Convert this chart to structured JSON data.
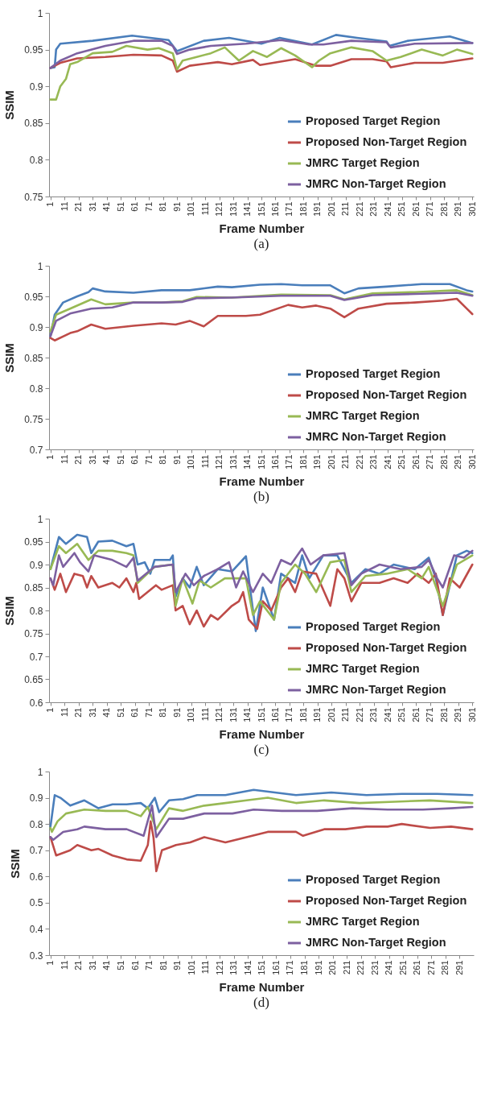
{
  "chart_data": [
    {
      "type": "line",
      "ylabel": "SSIM",
      "xlabel": "Frame Number",
      "annotations": [
        "(a)"
      ],
      "ylim": [
        0.75,
        1
      ],
      "yticks": [
        0.75,
        0.8,
        0.85,
        0.9,
        0.95,
        1
      ],
      "xlim": [
        0,
        302
      ],
      "xticks": [
        1,
        11,
        21,
        31,
        41,
        51,
        61,
        71,
        81,
        91,
        101,
        111,
        121,
        131,
        141,
        151,
        161,
        171,
        181,
        191,
        201,
        211,
        221,
        231,
        241,
        251,
        261,
        271,
        281,
        291,
        301
      ],
      "grid": false,
      "legend": "bottom right",
      "series": [
        {
          "name": "Proposed Target Region",
          "color": "#4a7ebb",
          "x": [
            1,
            4,
            5,
            8,
            31,
            59,
            85,
            91,
            110,
            128,
            151,
            164,
            187,
            204,
            219,
            240,
            242,
            255,
            285,
            301
          ],
          "values": [
            0.925,
            0.926,
            0.95,
            0.958,
            0.962,
            0.969,
            0.963,
            0.948,
            0.962,
            0.966,
            0.958,
            0.966,
            0.957,
            0.97,
            0.966,
            0.961,
            0.955,
            0.962,
            0.968,
            0.959
          ]
        },
        {
          "name": "Proposed Non-Target Region",
          "color": "#be4b48",
          "x": [
            1,
            8,
            20,
            40,
            60,
            80,
            88,
            91,
            100,
            120,
            130,
            145,
            150,
            175,
            190,
            200,
            215,
            230,
            240,
            243,
            260,
            280,
            301
          ],
          "values": [
            0.925,
            0.932,
            0.938,
            0.94,
            0.943,
            0.942,
            0.935,
            0.92,
            0.928,
            0.933,
            0.93,
            0.936,
            0.929,
            0.937,
            0.928,
            0.928,
            0.937,
            0.937,
            0.934,
            0.926,
            0.932,
            0.932,
            0.938
          ]
        },
        {
          "name": "JMRC Target Region",
          "color": "#98b954",
          "x": [
            1,
            5,
            8,
            12,
            15,
            20,
            31,
            45,
            55,
            70,
            78,
            88,
            91,
            95,
            105,
            115,
            125,
            135,
            145,
            155,
            165,
            175,
            187,
            192,
            200,
            215,
            230,
            240,
            250,
            265,
            280,
            290,
            301
          ],
          "values": [
            0.882,
            0.882,
            0.9,
            0.91,
            0.93,
            0.933,
            0.945,
            0.947,
            0.955,
            0.95,
            0.952,
            0.945,
            0.923,
            0.935,
            0.94,
            0.945,
            0.953,
            0.935,
            0.948,
            0.94,
            0.952,
            0.942,
            0.926,
            0.935,
            0.945,
            0.953,
            0.948,
            0.935,
            0.94,
            0.95,
            0.942,
            0.95,
            0.944
          ]
        },
        {
          "name": "JMRC Non-Target Region",
          "color": "#7d60a0",
          "x": [
            1,
            8,
            20,
            40,
            60,
            80,
            88,
            91,
            100,
            115,
            140,
            165,
            185,
            195,
            215,
            240,
            243,
            260,
            301
          ],
          "values": [
            0.925,
            0.935,
            0.945,
            0.955,
            0.962,
            0.962,
            0.955,
            0.944,
            0.95,
            0.955,
            0.958,
            0.963,
            0.957,
            0.957,
            0.962,
            0.96,
            0.953,
            0.958,
            0.959
          ]
        }
      ]
    },
    {
      "type": "line",
      "ylabel": "SSIM",
      "xlabel": "Frame Number",
      "annotations": [
        "(b)"
      ],
      "ylim": [
        0.7,
        1
      ],
      "yticks": [
        0.7,
        0.75,
        0.8,
        0.85,
        0.9,
        0.95,
        1
      ],
      "xlim": [
        0,
        302
      ],
      "xticks": [
        1,
        11,
        21,
        31,
        41,
        51,
        61,
        71,
        81,
        91,
        101,
        111,
        121,
        131,
        141,
        151,
        161,
        171,
        181,
        191,
        201,
        211,
        221,
        231,
        241,
        251,
        261,
        271,
        281,
        291,
        301
      ],
      "grid": false,
      "legend": "bottom right",
      "series": [
        {
          "name": "Proposed Target Region",
          "color": "#4a7ebb",
          "x": [
            1,
            4,
            10,
            20,
            28,
            31,
            40,
            60,
            80,
            100,
            120,
            130,
            150,
            165,
            180,
            200,
            210,
            220,
            240,
            265,
            285,
            297,
            301
          ],
          "values": [
            0.885,
            0.92,
            0.94,
            0.95,
            0.957,
            0.963,
            0.958,
            0.956,
            0.96,
            0.96,
            0.966,
            0.965,
            0.969,
            0.97,
            0.968,
            0.968,
            0.955,
            0.963,
            0.966,
            0.97,
            0.97,
            0.96,
            0.958
          ]
        },
        {
          "name": "Proposed Non-Target Region",
          "color": "#be4b48",
          "x": [
            1,
            4,
            15,
            20,
            30,
            40,
            60,
            80,
            90,
            100,
            110,
            120,
            140,
            150,
            170,
            180,
            190,
            200,
            210,
            220,
            240,
            260,
            280,
            290,
            297,
            301
          ],
          "values": [
            0.882,
            0.878,
            0.89,
            0.893,
            0.904,
            0.897,
            0.902,
            0.906,
            0.904,
            0.91,
            0.901,
            0.918,
            0.918,
            0.92,
            0.936,
            0.932,
            0.935,
            0.93,
            0.916,
            0.93,
            0.938,
            0.94,
            0.943,
            0.946,
            0.93,
            0.921
          ]
        },
        {
          "name": "JMRC Target Region",
          "color": "#98b954",
          "x": [
            1,
            5,
            15,
            30,
            40,
            60,
            80,
            95,
            105,
            130,
            165,
            200,
            210,
            230,
            260,
            290,
            301
          ],
          "values": [
            0.893,
            0.92,
            0.93,
            0.945,
            0.937,
            0.94,
            0.94,
            0.942,
            0.949,
            0.948,
            0.953,
            0.952,
            0.945,
            0.955,
            0.957,
            0.96,
            0.952
          ]
        },
        {
          "name": "JMRC Non-Target Region",
          "color": "#7d60a0",
          "x": [
            1,
            5,
            15,
            30,
            45,
            60,
            80,
            95,
            105,
            130,
            165,
            200,
            210,
            230,
            260,
            290,
            301
          ],
          "values": [
            0.885,
            0.91,
            0.922,
            0.93,
            0.932,
            0.94,
            0.94,
            0.941,
            0.947,
            0.948,
            0.951,
            0.951,
            0.944,
            0.952,
            0.954,
            0.956,
            0.951
          ]
        }
      ]
    },
    {
      "type": "line",
      "ylabel": "SSIM",
      "xlabel": "Frame Number",
      "annotations": [
        "(c)"
      ],
      "ylim": [
        0.6,
        1
      ],
      "yticks": [
        0.6,
        0.65,
        0.7,
        0.75,
        0.8,
        0.85,
        0.9,
        0.95,
        1
      ],
      "xlim": [
        0,
        302
      ],
      "xticks": [
        1,
        11,
        21,
        31,
        41,
        51,
        61,
        71,
        81,
        91,
        101,
        111,
        121,
        131,
        141,
        151,
        161,
        171,
        181,
        191,
        201,
        211,
        221,
        231,
        241,
        251,
        261,
        271,
        281,
        291,
        301
      ],
      "grid": false,
      "legend": "bottom right",
      "series": [
        {
          "name": "Proposed Target Region",
          "color": "#4a7ebb",
          "x": [
            1,
            7,
            12,
            20,
            27,
            30,
            35,
            45,
            55,
            60,
            63,
            68,
            72,
            75,
            86,
            88,
            90,
            95,
            100,
            105,
            110,
            120,
            130,
            140,
            145,
            147,
            152,
            160,
            165,
            175,
            180,
            185,
            195,
            205,
            215,
            225,
            235,
            245,
            260,
            270,
            275,
            280,
            290,
            297,
            301
          ],
          "values": [
            0.89,
            0.96,
            0.945,
            0.965,
            0.96,
            0.925,
            0.95,
            0.952,
            0.94,
            0.945,
            0.9,
            0.905,
            0.88,
            0.91,
            0.91,
            0.92,
            0.83,
            0.87,
            0.85,
            0.895,
            0.855,
            0.89,
            0.885,
            0.918,
            0.8,
            0.755,
            0.85,
            0.78,
            0.88,
            0.86,
            0.92,
            0.87,
            0.92,
            0.92,
            0.86,
            0.89,
            0.88,
            0.9,
            0.89,
            0.915,
            0.87,
            0.79,
            0.92,
            0.93,
            0.925
          ]
        },
        {
          "name": "Proposed Non-Target Region",
          "color": "#be4b48",
          "x": [
            1,
            4,
            8,
            12,
            18,
            24,
            27,
            30,
            35,
            45,
            50,
            55,
            60,
            62,
            64,
            70,
            76,
            80,
            88,
            90,
            95,
            100,
            105,
            110,
            115,
            120,
            130,
            135,
            138,
            142,
            148,
            152,
            158,
            165,
            170,
            175,
            180,
            190,
            200,
            205,
            210,
            215,
            222,
            235,
            245,
            255,
            262,
            270,
            275,
            280,
            285,
            292,
            301
          ],
          "values": [
            0.87,
            0.845,
            0.88,
            0.84,
            0.88,
            0.875,
            0.85,
            0.875,
            0.85,
            0.86,
            0.85,
            0.87,
            0.84,
            0.86,
            0.825,
            0.84,
            0.855,
            0.845,
            0.855,
            0.8,
            0.81,
            0.77,
            0.8,
            0.765,
            0.79,
            0.78,
            0.81,
            0.82,
            0.84,
            0.78,
            0.76,
            0.82,
            0.8,
            0.85,
            0.87,
            0.84,
            0.885,
            0.88,
            0.81,
            0.89,
            0.87,
            0.82,
            0.86,
            0.86,
            0.87,
            0.86,
            0.88,
            0.86,
            0.88,
            0.79,
            0.87,
            0.85,
            0.9
          ]
        },
        {
          "name": "JMRC Target Region",
          "color": "#98b954",
          "x": [
            1,
            7,
            12,
            20,
            28,
            35,
            45,
            55,
            60,
            63,
            75,
            88,
            90,
            95,
            102,
            107,
            115,
            125,
            140,
            145,
            150,
            160,
            165,
            175,
            182,
            190,
            200,
            210,
            215,
            225,
            240,
            255,
            265,
            270,
            280,
            290,
            301
          ],
          "values": [
            0.89,
            0.94,
            0.925,
            0.945,
            0.91,
            0.93,
            0.93,
            0.925,
            0.92,
            0.86,
            0.895,
            0.9,
            0.81,
            0.87,
            0.815,
            0.865,
            0.85,
            0.87,
            0.87,
            0.79,
            0.82,
            0.78,
            0.86,
            0.9,
            0.88,
            0.84,
            0.905,
            0.91,
            0.84,
            0.875,
            0.88,
            0.89,
            0.87,
            0.895,
            0.81,
            0.9,
            0.92
          ]
        },
        {
          "name": "JMRC Non-Target Region",
          "color": "#7d60a0",
          "x": [
            1,
            3,
            7,
            10,
            18,
            22,
            28,
            32,
            45,
            55,
            60,
            63,
            75,
            88,
            90,
            97,
            103,
            110,
            120,
            128,
            133,
            138,
            145,
            152,
            158,
            165,
            172,
            180,
            186,
            195,
            210,
            215,
            222,
            235,
            250,
            265,
            270,
            276,
            280,
            288,
            295,
            301
          ],
          "values": [
            0.87,
            0.855,
            0.92,
            0.895,
            0.925,
            0.905,
            0.885,
            0.92,
            0.91,
            0.895,
            0.915,
            0.865,
            0.895,
            0.9,
            0.84,
            0.88,
            0.855,
            0.875,
            0.89,
            0.905,
            0.85,
            0.885,
            0.84,
            0.88,
            0.86,
            0.91,
            0.9,
            0.935,
            0.9,
            0.92,
            0.925,
            0.855,
            0.88,
            0.9,
            0.89,
            0.895,
            0.91,
            0.87,
            0.85,
            0.92,
            0.915,
            0.93
          ]
        }
      ]
    },
    {
      "type": "line",
      "ylabel": "SSIM",
      "xlabel": "Frame Number",
      "annotations": [
        "(d)"
      ],
      "ylim": [
        0.3,
        1
      ],
      "yticks": [
        0.3,
        0.4,
        0.5,
        0.6,
        0.7,
        0.8,
        0.9,
        1
      ],
      "xlim": [
        0,
        301
      ],
      "xticks": [
        1,
        11,
        21,
        31,
        41,
        51,
        61,
        71,
        81,
        91,
        101,
        111,
        121,
        131,
        141,
        151,
        161,
        171,
        181,
        191,
        201,
        211,
        221,
        231,
        241,
        251,
        261,
        271,
        281,
        291
      ],
      "grid": false,
      "legend": "bottom right",
      "series": [
        {
          "name": "Proposed Target Region",
          "color": "#4a7ebb",
          "x": [
            1,
            4,
            8,
            15,
            25,
            35,
            45,
            55,
            65,
            70,
            75,
            78,
            85,
            95,
            105,
            125,
            145,
            160,
            175,
            200,
            225,
            250,
            275,
            300
          ],
          "values": [
            0.79,
            0.91,
            0.9,
            0.87,
            0.89,
            0.86,
            0.875,
            0.875,
            0.88,
            0.86,
            0.9,
            0.845,
            0.89,
            0.895,
            0.91,
            0.91,
            0.93,
            0.92,
            0.91,
            0.92,
            0.91,
            0.915,
            0.915,
            0.91
          ]
        },
        {
          "name": "Proposed Non-Target Region",
          "color": "#be4b48",
          "x": [
            1,
            5,
            15,
            20,
            30,
            35,
            45,
            55,
            65,
            70,
            72,
            74,
            76,
            80,
            90,
            100,
            110,
            125,
            140,
            155,
            175,
            180,
            195,
            210,
            225,
            240,
            250,
            270,
            285,
            300
          ],
          "values": [
            0.75,
            0.68,
            0.7,
            0.72,
            0.7,
            0.705,
            0.68,
            0.665,
            0.66,
            0.72,
            0.81,
            0.75,
            0.62,
            0.7,
            0.72,
            0.73,
            0.75,
            0.73,
            0.75,
            0.77,
            0.77,
            0.755,
            0.78,
            0.78,
            0.79,
            0.79,
            0.8,
            0.785,
            0.79,
            0.78
          ]
        },
        {
          "name": "JMRC Target Region",
          "color": "#98b954",
          "x": [
            1,
            2,
            6,
            12,
            25,
            40,
            55,
            65,
            70,
            76,
            85,
            95,
            110,
            125,
            140,
            155,
            175,
            195,
            220,
            245,
            270,
            300
          ],
          "values": [
            0.785,
            0.77,
            0.81,
            0.84,
            0.855,
            0.85,
            0.85,
            0.83,
            0.865,
            0.78,
            0.86,
            0.85,
            0.87,
            0.88,
            0.89,
            0.9,
            0.88,
            0.89,
            0.88,
            0.885,
            0.89,
            0.88
          ]
        },
        {
          "name": "JMRC Non-Target Region",
          "color": "#7d60a0",
          "x": [
            1,
            3,
            10,
            20,
            25,
            40,
            55,
            67,
            73,
            76,
            85,
            95,
            110,
            130,
            145,
            165,
            190,
            215,
            240,
            265,
            285,
            300
          ],
          "values": [
            0.75,
            0.74,
            0.77,
            0.78,
            0.79,
            0.78,
            0.78,
            0.755,
            0.87,
            0.75,
            0.82,
            0.82,
            0.84,
            0.84,
            0.855,
            0.85,
            0.85,
            0.86,
            0.855,
            0.855,
            0.86,
            0.865
          ]
        }
      ]
    }
  ]
}
